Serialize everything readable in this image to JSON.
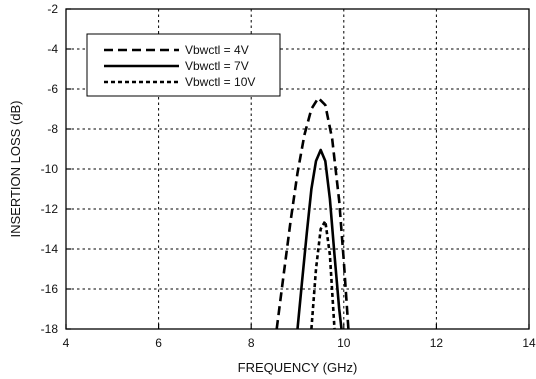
{
  "chart_data": {
    "type": "line",
    "xlabel": "FREQUENCY (GHz)",
    "ylabel": "INSERTION LOSS (dB)",
    "xlim": [
      4,
      14
    ],
    "ylim": [
      -18,
      -2
    ],
    "xticks": [
      4,
      6,
      8,
      10,
      12,
      14
    ],
    "yticks": [
      -2,
      -4,
      -6,
      -8,
      -10,
      -12,
      -14,
      -16,
      -18
    ],
    "grid": true,
    "legend_position": "top-left",
    "series": [
      {
        "name": "Vbwctl = 4V",
        "dash": "dashed",
        "x": [
          8.55,
          8.7,
          8.85,
          9.0,
          9.15,
          9.3,
          9.45,
          9.6,
          9.75,
          9.9,
          10.0,
          10.1
        ],
        "y": [
          -18,
          -15.3,
          -12.6,
          -10.2,
          -8.3,
          -7.0,
          -6.45,
          -6.8,
          -8.5,
          -11.6,
          -14.6,
          -18
        ]
      },
      {
        "name": "Vbwctl = 7V",
        "dash": "solid",
        "x": [
          9.0,
          9.1,
          9.2,
          9.3,
          9.4,
          9.5,
          9.6,
          9.7,
          9.8,
          9.9,
          9.95
        ],
        "y": [
          -18,
          -15.6,
          -13.2,
          -11.0,
          -9.6,
          -9.05,
          -9.6,
          -11.5,
          -14.3,
          -17.0,
          -18
        ]
      },
      {
        "name": "Vbwctl = 10V",
        "dash": "dotted",
        "x": [
          9.3,
          9.4,
          9.5,
          9.6,
          9.7,
          9.8
        ],
        "y": [
          -18,
          -15.0,
          -13.0,
          -12.6,
          -14.3,
          -18
        ]
      }
    ]
  }
}
